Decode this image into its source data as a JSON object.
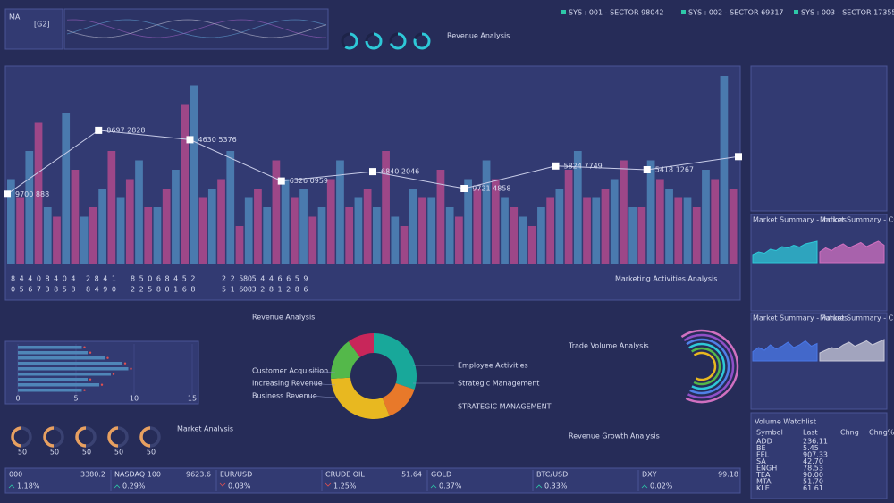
{
  "header": {
    "code": "MA",
    "tag": "[G2]",
    "panel_title": "Revenue Analysis",
    "sectors": [
      "SYS : 001 - SECTOR 98042",
      "SYS : 002 - SECTOR 69317",
      "SYS : 003 - SECTOR 17355"
    ],
    "gauges": {
      "max": 100,
      "values": [
        60,
        75,
        70,
        80
      ],
      "color": "#2ec8d8"
    }
  },
  "main_chart": {
    "type": "bar",
    "ylim": [
      0,
      100
    ],
    "series": [
      {
        "name": "blue",
        "color": "#4f86b8",
        "values": [
          45,
          60,
          30,
          80,
          25,
          40,
          35,
          55,
          30,
          50,
          95,
          40,
          60,
          35,
          30,
          45,
          40,
          30,
          55,
          35,
          30,
          25,
          40,
          35,
          30,
          45,
          55,
          35,
          25,
          30,
          40,
          60,
          35,
          45,
          30,
          55,
          40,
          35,
          50,
          100
        ]
      },
      {
        "name": "pink",
        "color": "#b04a8c",
        "values": [
          35,
          75,
          25,
          50,
          30,
          60,
          45,
          30,
          40,
          85,
          35,
          45,
          20,
          40,
          55,
          35,
          25,
          45,
          30,
          40,
          60,
          20,
          35,
          50,
          25,
          40,
          45,
          30,
          20,
          35,
          50,
          35,
          40,
          55,
          30,
          45,
          35,
          30,
          45,
          40
        ]
      }
    ],
    "line": {
      "values": [
        37,
        71,
        66,
        44,
        49,
        40,
        52,
        50,
        57
      ],
      "labels": [
        "9700 888",
        "8697 2828",
        "4630 5376",
        "6326 0959",
        "6840 2046",
        "9721 4858",
        "5824 7749",
        "5418 1267",
        null
      ]
    },
    "digits": [
      [
        "8 4 4 0 8 4 0 4",
        "2 8 4 1",
        "8 5 0 6 8 4 5 2",
        "2 2 5 0",
        "8 5 4 4 6 6 5 9"
      ],
      [
        "0 5 6 7 3 8 5 8",
        "8 4 9 0",
        "2 2 5 8 0 1 6 8",
        "5 1 6 8",
        "0 3 2 8 1 2 8 6"
      ]
    ],
    "caption": "Marketing Activities Analysis"
  },
  "hbar_chart": {
    "type": "bar",
    "xlim": [
      0,
      15
    ],
    "xticks": [
      0,
      5,
      10,
      15
    ],
    "color": "#4f86b8",
    "values": [
      5.5,
      6,
      7.5,
      9,
      9.5,
      8,
      6,
      7,
      5.5
    ]
  },
  "ring_gauges": {
    "title": "Market Analysis",
    "max": 100,
    "values": [
      50,
      50,
      50,
      50,
      50
    ],
    "color": "#e8a060"
  },
  "donut": {
    "type": "pie",
    "title": "Revenue Analysis",
    "values": [
      30,
      14,
      30,
      16,
      10
    ],
    "colors": [
      "#18a89a",
      "#e8792a",
      "#e8b820",
      "#54b84a",
      "#c8265a"
    ],
    "labels_left": [
      "Customer Acquisition",
      "Increasing Revenue",
      "Business Revenue"
    ],
    "labels_right": [
      "Employee Activities",
      "Strategic Management"
    ],
    "note": "STRATEGIC MANAGEMENT"
  },
  "trade_title": "Trade Volume Analysis",
  "growth_title": "Revenue Growth Analysis",
  "summaries": [
    {
      "title": "Market Summary - Indices",
      "color": "#2ec8d8",
      "ylim": [
        0,
        100
      ],
      "values": [
        30,
        40,
        35,
        50,
        45,
        60,
        55,
        65,
        58,
        70,
        75,
        80
      ]
    },
    {
      "title": "Market Summary - Currencies",
      "color": "#d070c0",
      "ylim": [
        0,
        100
      ],
      "values": [
        40,
        55,
        45,
        60,
        70,
        55,
        65,
        75,
        60,
        70,
        80,
        65
      ]
    },
    {
      "title": "Market Summary - Futures",
      "color": "#4a78e8",
      "ylim": [
        0,
        100
      ],
      "values": [
        35,
        50,
        40,
        60,
        45,
        55,
        70,
        50,
        60,
        75,
        55,
        65
      ]
    },
    {
      "title": "Market Summary - Crypto",
      "color": "#c8c8d8",
      "ylim": [
        0,
        100
      ],
      "values": [
        30,
        40,
        50,
        45,
        60,
        70,
        55,
        65,
        75,
        60,
        70,
        80
      ]
    }
  ],
  "watchlist": {
    "title": "Volume Watchlist",
    "header": [
      "Symbol",
      "Last",
      "Chng",
      "Chng%"
    ],
    "rows": [
      [
        "ADD",
        "236.11"
      ],
      [
        "BE",
        "5.45"
      ],
      [
        "FEL",
        "907.33"
      ],
      [
        "SA",
        "42.70"
      ],
      [
        "ENGH",
        "78.53"
      ],
      [
        "TEA",
        "90.00"
      ],
      [
        "MTA",
        "51.70"
      ],
      [
        "KLE",
        "61.61"
      ]
    ]
  },
  "ticker": [
    {
      "name": "000",
      "value": "3380.2",
      "change": "1.18%",
      "direction": "up"
    },
    {
      "name": "NASDAQ 100",
      "value": "9623.6",
      "change": "0.29%",
      "direction": "up"
    },
    {
      "name": "EUR/USD",
      "value": null,
      "change": "0.03%",
      "direction": "down"
    },
    {
      "name": "CRUDE OIL",
      "value": "51.64",
      "change": "1.25%",
      "direction": "down"
    },
    {
      "name": "GOLD",
      "value": null,
      "change": "0.37%",
      "direction": "up"
    },
    {
      "name": "BTC/USD",
      "value": null,
      "change": "0.33%",
      "direction": "up"
    },
    {
      "name": "DXY",
      "value": "99.18",
      "change": "0.02%",
      "direction": "up"
    }
  ]
}
